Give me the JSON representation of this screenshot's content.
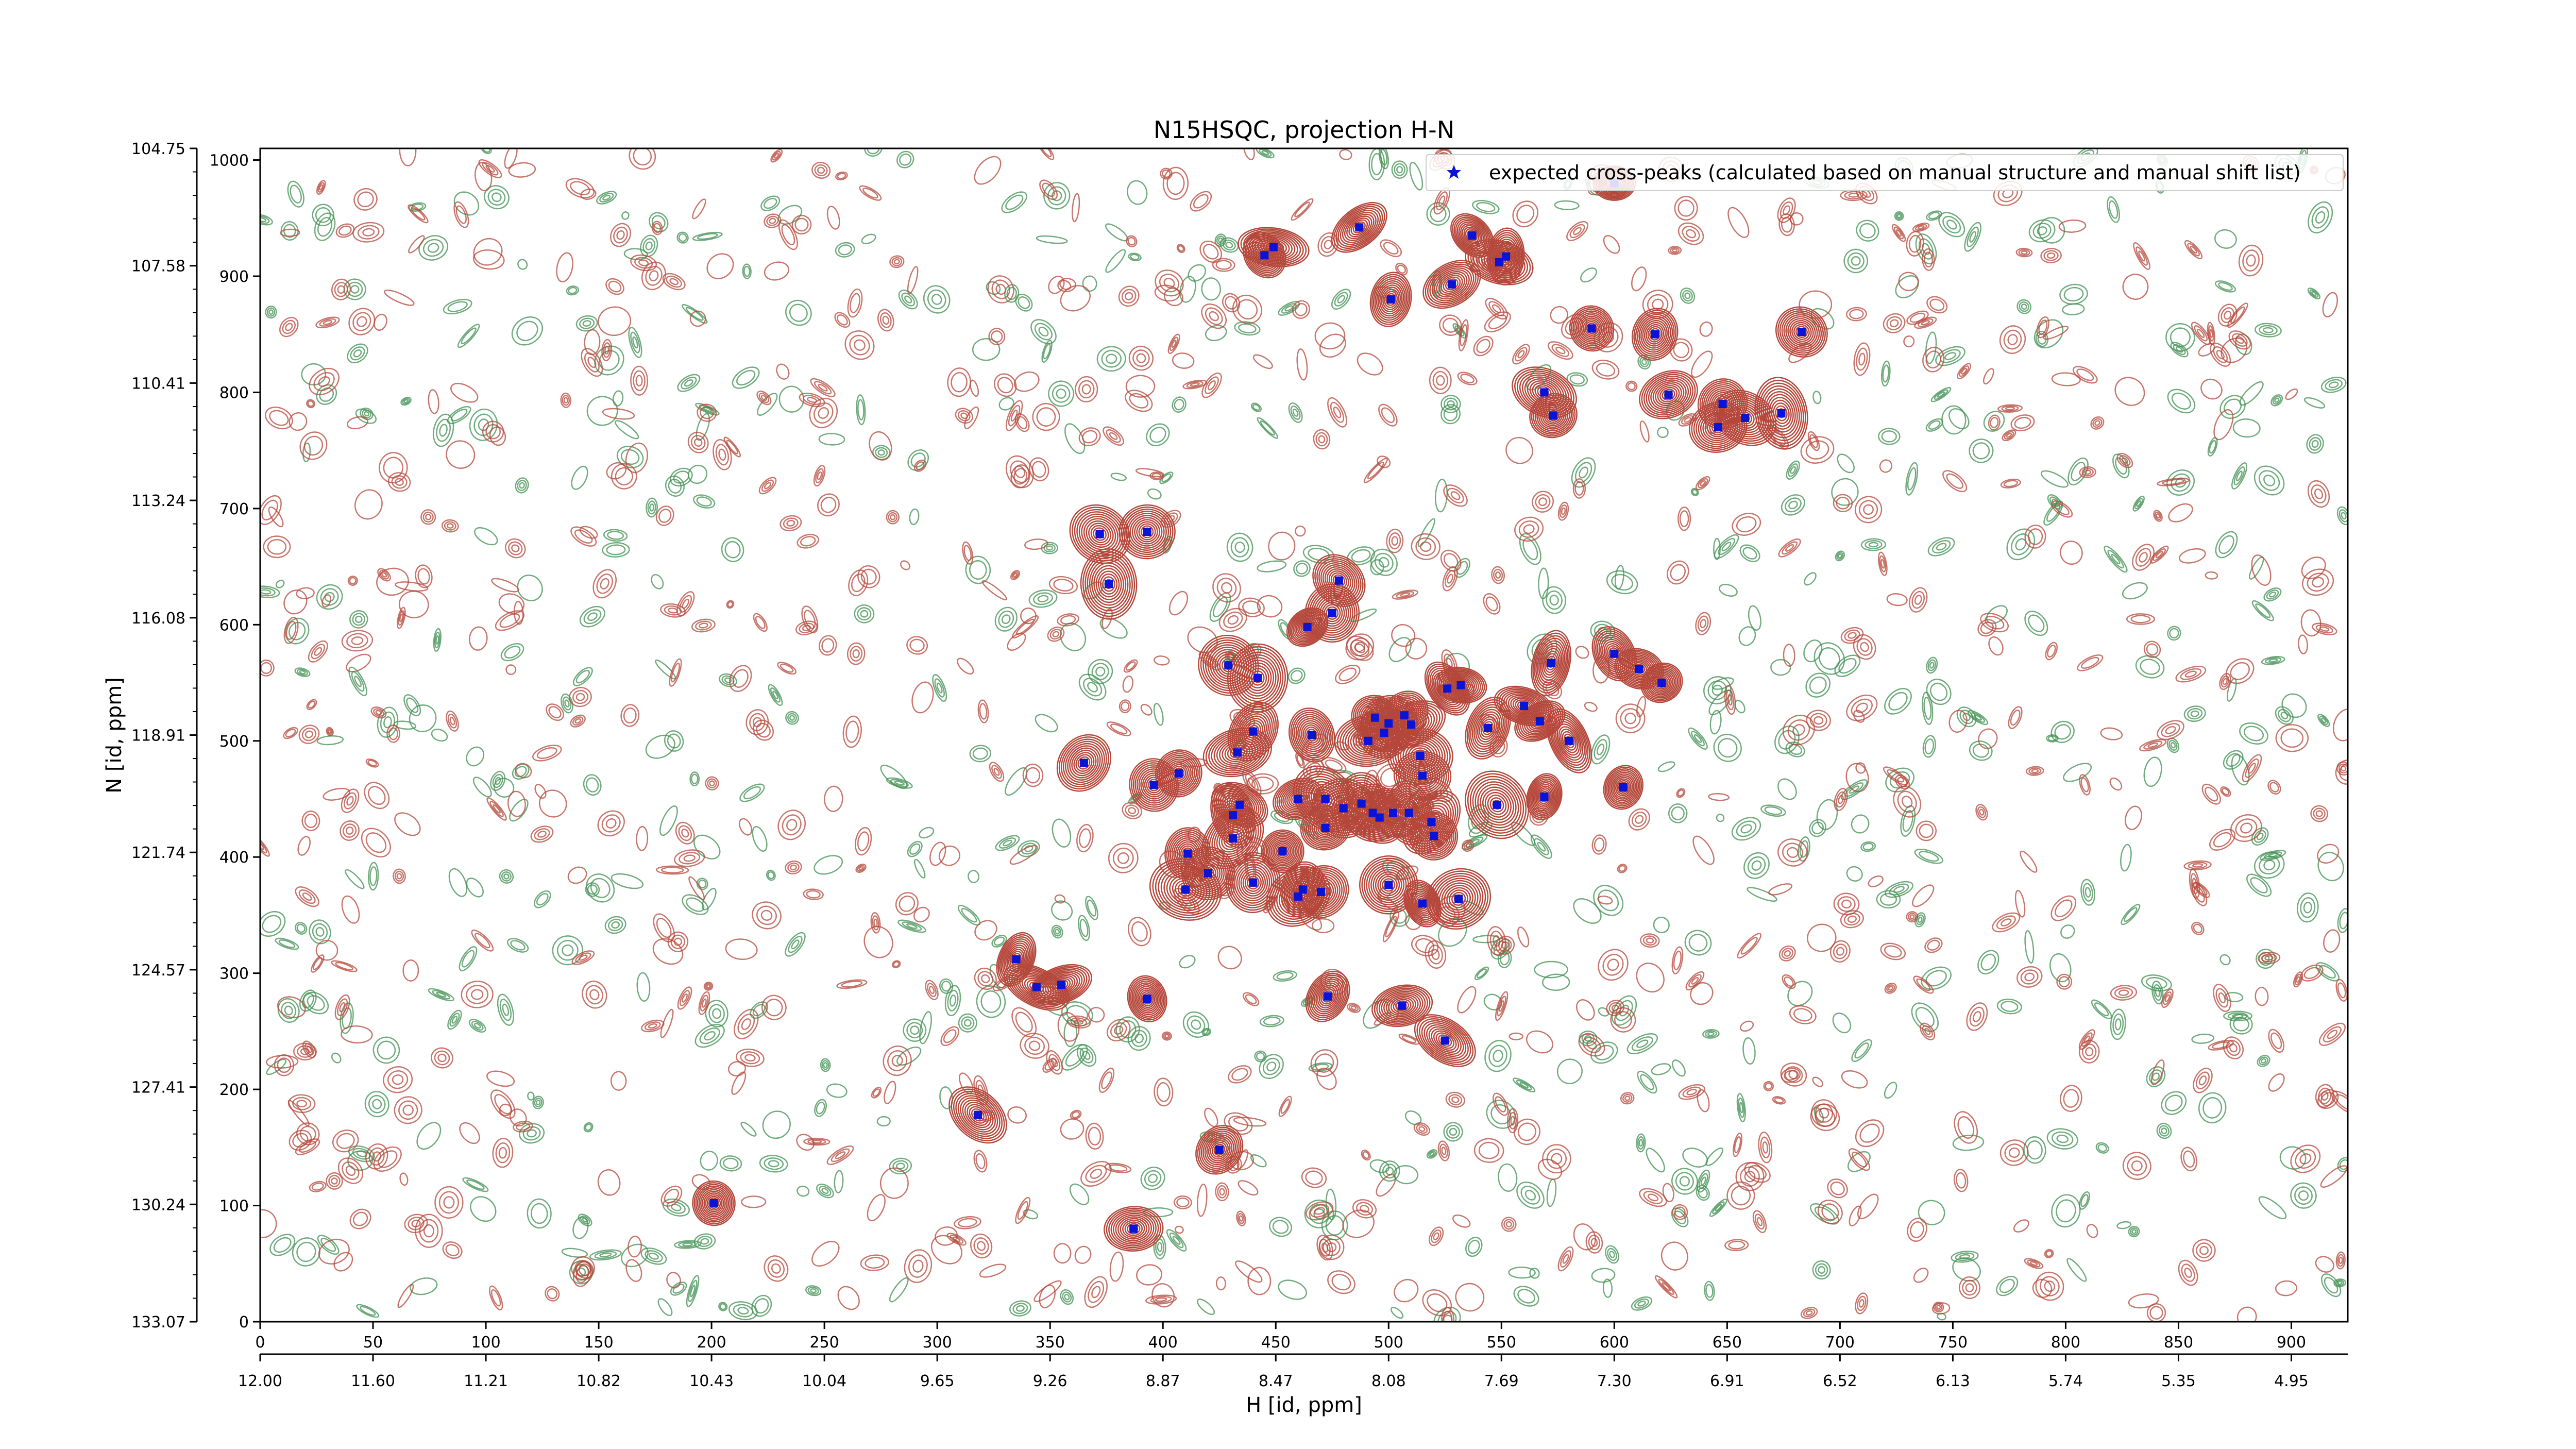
{
  "colors": {
    "positive_contour": "#b5473a",
    "negative_contour": "#3f8f50",
    "peak_marker": "#0a14d8",
    "axis": "#000000"
  },
  "chart_data": {
    "type": "scatter",
    "title": "N15HSQC, projection H-N",
    "xlabel": "H [id, ppm]",
    "ylabel": "N [id, ppm]",
    "legend": {
      "label": "expected cross-peaks (calculated based on manual structure and manual shift list)",
      "placement": "top-right",
      "marker": "star"
    },
    "x_index_range": [
      0,
      925
    ],
    "y_index_range": [
      0,
      1010
    ],
    "x_index_ticks": [
      "0",
      "50",
      "100",
      "150",
      "200",
      "250",
      "300",
      "350",
      "400",
      "450",
      "500",
      "550",
      "600",
      "650",
      "700",
      "750",
      "800",
      "850",
      "900"
    ],
    "x_ppm_ticks": [
      "12.00",
      "11.60",
      "11.21",
      "10.82",
      "10.43",
      "10.04",
      "9.65",
      "9.26",
      "8.87",
      "8.47",
      "8.08",
      "7.69",
      "7.30",
      "6.91",
      "6.52",
      "6.13",
      "5.74",
      "5.35",
      "4.95"
    ],
    "y_index_ticks": [
      "1000",
      "900",
      "800",
      "700",
      "600",
      "500",
      "400",
      "300",
      "200",
      "100",
      "0"
    ],
    "y_ppm_ticks": [
      "104.75",
      "107.58",
      "110.41",
      "113.24",
      "116.08",
      "118.91",
      "121.74",
      "124.57",
      "127.41",
      "130.24",
      "133.07"
    ],
    "contours": {
      "positive": "red contours",
      "negative": "green contours",
      "levels_per_peak": 12
    },
    "series": [
      {
        "name": "expected cross-peaks (calculated based on manual structure and manual shift list)",
        "x": [
          600,
          537,
          552,
          487,
          449,
          445,
          501,
          528,
          549,
          590,
          618,
          624,
          569,
          573,
          648,
          646,
          658,
          674,
          683,
          393,
          372,
          376,
          478,
          475,
          429,
          442,
          464,
          532,
          526,
          572,
          621,
          611,
          600,
          544,
          510,
          494,
          466,
          440,
          433,
          407,
          396,
          365,
          491,
          507,
          498,
          500,
          514,
          472,
          515,
          493,
          480,
          548,
          569,
          567,
          560,
          580,
          604,
          460,
          434,
          431,
          453,
          472,
          502,
          509,
          519,
          520,
          496,
          488,
          431,
          411,
          420,
          440,
          460,
          462,
          470,
          500,
          531,
          410,
          515,
          335,
          355,
          344,
          393,
          473,
          506,
          525,
          201,
          425,
          387,
          318
        ],
        "y": [
          980,
          935,
          917,
          942,
          925,
          918,
          880,
          893,
          912,
          855,
          850,
          798,
          800,
          780,
          790,
          770,
          778,
          782,
          852,
          680,
          678,
          635,
          638,
          610,
          565,
          554,
          598,
          548,
          545,
          567,
          550,
          562,
          575,
          511,
          514,
          520,
          505,
          508,
          490,
          472,
          462,
          481,
          500,
          522,
          507,
          515,
          487,
          450,
          470,
          438,
          442,
          445,
          452,
          517,
          530,
          500,
          460,
          450,
          445,
          436,
          405,
          425,
          438,
          438,
          430,
          418,
          434,
          446,
          416,
          403,
          386,
          378,
          366,
          372,
          370,
          376,
          364,
          372,
          360,
          312,
          290,
          288,
          278,
          280,
          272,
          242,
          102,
          148,
          80,
          178
        ]
      }
    ]
  }
}
